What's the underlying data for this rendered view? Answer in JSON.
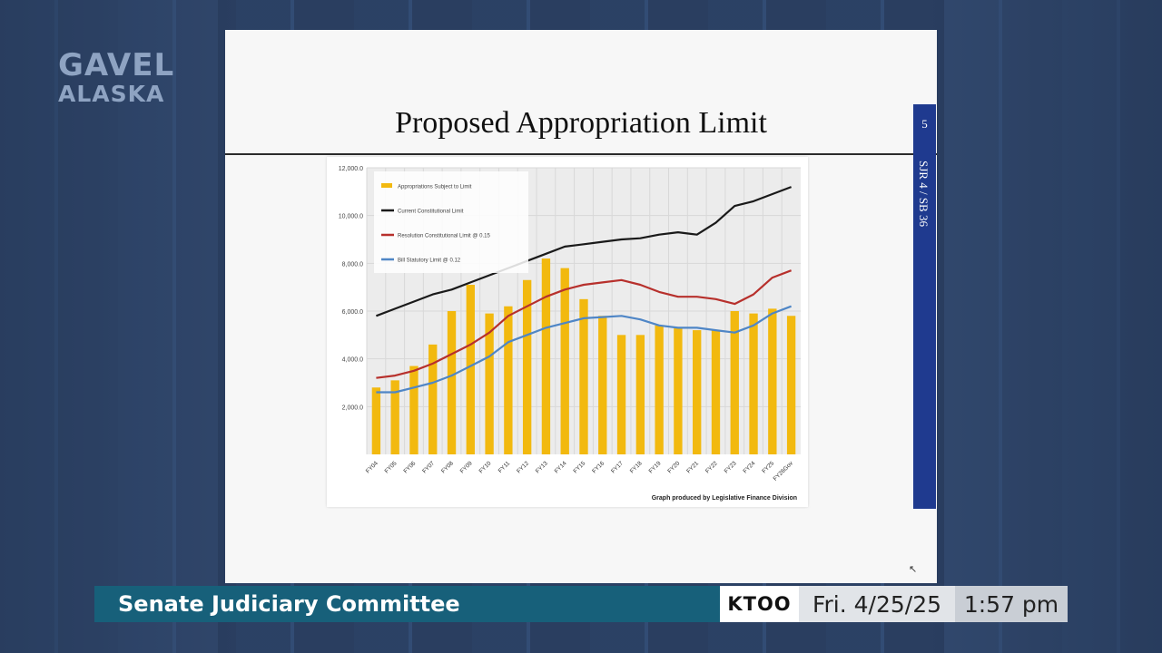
{
  "broadcast": {
    "logo_line1": "GAVEL",
    "logo_line2": "ALASKA",
    "program": "Senate Judiciary Committee",
    "station": "KTOO",
    "date": "Fri. 4/25/25",
    "time": "1:57 pm"
  },
  "slide": {
    "title": "Proposed Appropriation Limit",
    "page_number": "5",
    "side_label": "SJR 4 / SB 36",
    "chart_credit": "Graph produced by Legislative Finance Division"
  },
  "colors": {
    "bars": "#f2b90f",
    "current_limit": "#1a1a1a",
    "resolution_limit": "#b7302c",
    "statutory_limit": "#4f86c6",
    "lower_third": "#17607a",
    "side_tab": "#1f3a8f"
  },
  "chart_data": {
    "type": "bar",
    "title": "",
    "xlabel": "",
    "ylabel": "",
    "ylim": [
      0,
      12000
    ],
    "yticks": [
      "2,000.0",
      "4,000.0",
      "6,000.0",
      "8,000.0",
      "10,000.0",
      "12,000.0"
    ],
    "grid": true,
    "legend_position": "top-left",
    "categories": [
      "FY04",
      "FY05",
      "FY06",
      "FY07",
      "FY08",
      "FY09",
      "FY10",
      "FY11",
      "FY12",
      "FY13",
      "FY14",
      "FY15",
      "FY16",
      "FY17",
      "FY18",
      "FY19",
      "FY20",
      "FY21",
      "FY22",
      "FY23",
      "FY24",
      "FY25",
      "FY26Gov"
    ],
    "series": [
      {
        "name": "Appropriations Subject to Limit",
        "kind": "bar",
        "values": [
          2800,
          3100,
          3700,
          4600,
          6000,
          7100,
          5900,
          6200,
          7300,
          8200,
          7800,
          6500,
          5800,
          5000,
          5000,
          5400,
          5300,
          5200,
          5200,
          6000,
          5900,
          6100,
          5800
        ]
      },
      {
        "name": "Current Constitutional Limit",
        "kind": "line",
        "values": [
          5800,
          6100,
          6400,
          6700,
          6900,
          7200,
          7500,
          7800,
          8100,
          8400,
          8700,
          8800,
          8900,
          9000,
          9050,
          9200,
          9300,
          9200,
          9700,
          10400,
          10600,
          10900,
          11200
        ]
      },
      {
        "name": "Resolution Constitutional Limit @ 0.15",
        "kind": "line",
        "values": [
          3200,
          3300,
          3500,
          3800,
          4200,
          4600,
          5100,
          5800,
          6200,
          6600,
          6900,
          7100,
          7200,
          7300,
          7100,
          6800,
          6600,
          6600,
          6500,
          6300,
          6700,
          7400,
          7700
        ]
      },
      {
        "name": "Bill Statutory Limit @ 0.12",
        "kind": "line",
        "values": [
          2600,
          2600,
          2800,
          3000,
          3300,
          3700,
          4100,
          4700,
          5000,
          5300,
          5500,
          5700,
          5750,
          5800,
          5650,
          5400,
          5300,
          5300,
          5200,
          5100,
          5400,
          5900,
          6200
        ]
      }
    ]
  }
}
